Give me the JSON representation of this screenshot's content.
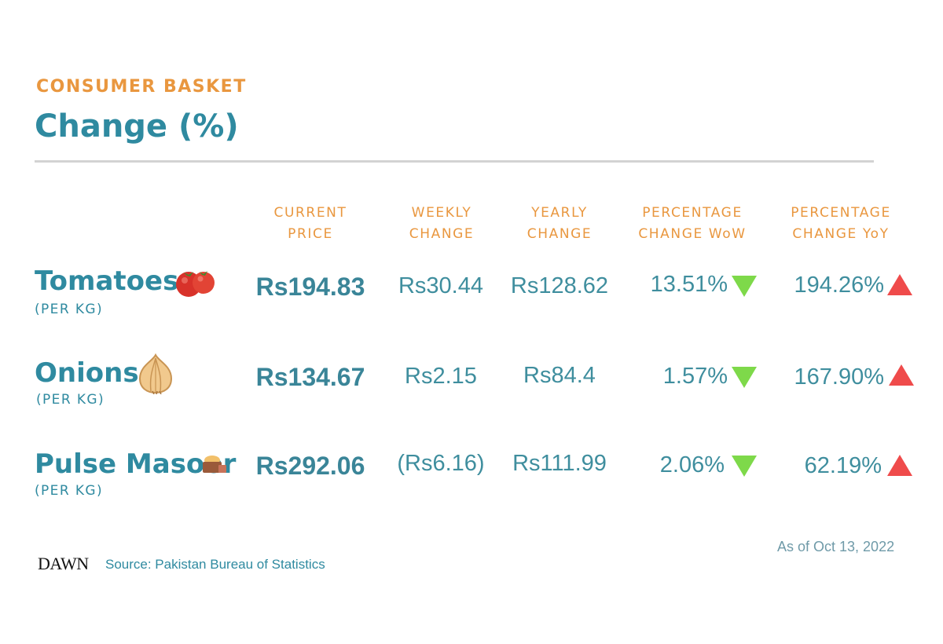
{
  "header": {
    "kicker": "CONSUMER BASKET",
    "title": "Change (%)"
  },
  "columns": [
    {
      "line1": "CURRENT",
      "line2": "PRICE"
    },
    {
      "line1": "WEEKLY",
      "line2": "CHANGE"
    },
    {
      "line1": "YEARLY",
      "line2": "CHANGE"
    },
    {
      "line1": "PERCENTAGE",
      "line2": "CHANGE WoW"
    },
    {
      "line1": "PERCENTAGE",
      "line2": "CHANGE YoY"
    }
  ],
  "rows": [
    {
      "name": "Tomatoes",
      "unit": "(PER KG)",
      "icon": "tomato-icon",
      "current_price": "Rs194.83",
      "weekly_change": "Rs30.44",
      "yearly_change": "Rs128.62",
      "wow": "13.51%",
      "wow_direction": "down",
      "yoy": "194.26%",
      "yoy_direction": "up"
    },
    {
      "name": "Onions",
      "unit": "(PER KG)",
      "icon": "onion-icon",
      "current_price": "Rs134.67",
      "weekly_change": "Rs2.15",
      "yearly_change": "Rs84.4",
      "wow": "1.57%",
      "wow_direction": "down",
      "yoy": "167.90%",
      "yoy_direction": "up"
    },
    {
      "name": "Pulse Masoor",
      "unit": "(PER KG)",
      "icon": "pulse-bowl-icon",
      "current_price": "Rs292.06",
      "weekly_change": "(Rs6.16)",
      "yearly_change": "Rs111.99",
      "wow": "2.06%",
      "wow_direction": "down",
      "yoy": "62.19%",
      "yoy_direction": "up"
    }
  ],
  "footer": {
    "as_of": "As of Oct 13, 2022",
    "logo": "DAWN",
    "source": "Source: Pakistan Bureau of Statistics"
  },
  "colors": {
    "accent_orange": "#e9973f",
    "teal": "#2f8aa0",
    "down_green": "#7ed94a",
    "up_red": "#ef4b4b"
  }
}
